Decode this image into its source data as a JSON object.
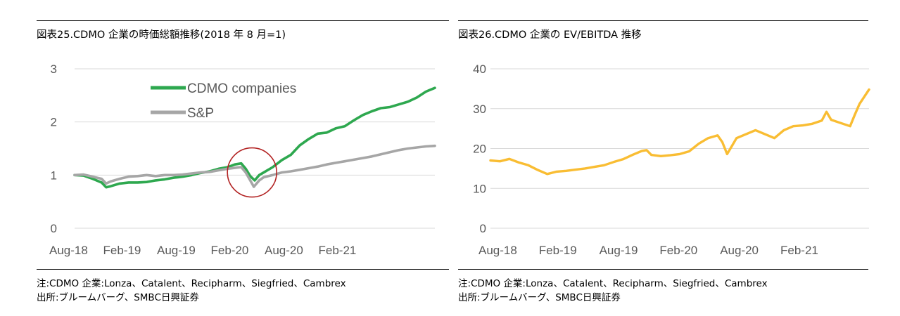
{
  "chart_data": [
    {
      "type": "line",
      "title": "図表25.CDMO 企業の時価総額推移(2018 年 8 月=1)",
      "xlabel": "",
      "ylabel": "",
      "x_tick_labels": [
        "Aug-18",
        "Feb-19",
        "Aug-19",
        "Feb-20",
        "Aug-20",
        "Feb-21"
      ],
      "y_tick_labels": [
        "0",
        "1",
        "2",
        "3"
      ],
      "ylim": [
        0,
        3
      ],
      "x_range_months": [
        0,
        40
      ],
      "grid": "horizontal",
      "legend_position": "upper-center",
      "annotation": "red circle around Feb-20 COVID drop",
      "series": [
        {
          "name": "CDMO companies",
          "color": "#2EA84F",
          "points": [
            [
              0,
              1.0
            ],
            [
              1,
              0.99
            ],
            [
              2,
              0.93
            ],
            [
              3,
              0.86
            ],
            [
              3.5,
              0.77
            ],
            [
              4,
              0.79
            ],
            [
              5,
              0.84
            ],
            [
              6,
              0.86
            ],
            [
              7,
              0.86
            ],
            [
              8,
              0.87
            ],
            [
              9,
              0.9
            ],
            [
              10,
              0.92
            ],
            [
              11,
              0.95
            ],
            [
              12,
              0.97
            ],
            [
              13,
              1.0
            ],
            [
              14,
              1.04
            ],
            [
              15,
              1.07
            ],
            [
              16,
              1.12
            ],
            [
              17,
              1.15
            ],
            [
              17.8,
              1.2
            ],
            [
              18.5,
              1.22
            ],
            [
              19,
              1.12
            ],
            [
              19.5,
              0.98
            ],
            [
              20,
              0.9
            ],
            [
              20.5,
              1.0
            ],
            [
              21,
              1.05
            ],
            [
              22,
              1.15
            ],
            [
              23,
              1.28
            ],
            [
              24,
              1.38
            ],
            [
              25,
              1.56
            ],
            [
              26,
              1.68
            ],
            [
              27,
              1.78
            ],
            [
              28,
              1.8
            ],
            [
              29,
              1.88
            ],
            [
              30,
              1.92
            ],
            [
              31,
              2.03
            ],
            [
              32,
              2.13
            ],
            [
              33,
              2.2
            ],
            [
              34,
              2.26
            ],
            [
              35,
              2.28
            ],
            [
              36,
              2.33
            ],
            [
              37,
              2.38
            ],
            [
              38,
              2.46
            ],
            [
              39,
              2.57
            ],
            [
              40,
              2.64
            ]
          ]
        },
        {
          "name": "S&P",
          "color": "#A6A6A6",
          "points": [
            [
              0,
              1.0
            ],
            [
              1,
              1.01
            ],
            [
              2,
              0.97
            ],
            [
              3,
              0.93
            ],
            [
              3.5,
              0.84
            ],
            [
              4,
              0.88
            ],
            [
              5,
              0.93
            ],
            [
              6,
              0.97
            ],
            [
              7,
              0.98
            ],
            [
              8,
              1.0
            ],
            [
              9,
              0.98
            ],
            [
              10,
              1.0
            ],
            [
              11,
              1.0
            ],
            [
              12,
              1.01
            ],
            [
              13,
              1.03
            ],
            [
              14,
              1.05
            ],
            [
              15,
              1.06
            ],
            [
              16,
              1.09
            ],
            [
              17,
              1.12
            ],
            [
              18,
              1.14
            ],
            [
              18.5,
              1.15
            ],
            [
              19,
              1.05
            ],
            [
              19.5,
              0.9
            ],
            [
              19.9,
              0.78
            ],
            [
              20.5,
              0.9
            ],
            [
              21,
              0.96
            ],
            [
              22,
              1.0
            ],
            [
              23,
              1.05
            ],
            [
              24,
              1.07
            ],
            [
              25,
              1.1
            ],
            [
              26,
              1.13
            ],
            [
              27,
              1.16
            ],
            [
              28,
              1.2
            ],
            [
              29,
              1.23
            ],
            [
              30,
              1.26
            ],
            [
              31,
              1.29
            ],
            [
              32,
              1.32
            ],
            [
              33,
              1.35
            ],
            [
              34,
              1.39
            ],
            [
              35,
              1.43
            ],
            [
              36,
              1.47
            ],
            [
              37,
              1.5
            ],
            [
              38,
              1.52
            ],
            [
              39,
              1.54
            ],
            [
              40,
              1.55
            ]
          ]
        }
      ]
    },
    {
      "type": "line",
      "title": "図表26.CDMO 企業の EV/EBITDA 推移",
      "xlabel": "",
      "ylabel": "",
      "x_tick_labels": [
        "Aug-18",
        "Feb-19",
        "Aug-19",
        "Feb-20",
        "Aug-20",
        "Feb-21"
      ],
      "y_tick_labels": [
        "0",
        "10",
        "20",
        "30",
        "40"
      ],
      "ylim": [
        0,
        40
      ],
      "x_range_months": [
        0,
        40
      ],
      "grid": "horizontal",
      "series": [
        {
          "name": "EV/EBITDA",
          "color": "#F9BD33",
          "points": [
            [
              0,
              17.0
            ],
            [
              1,
              16.8
            ],
            [
              2,
              17.4
            ],
            [
              3,
              16.5
            ],
            [
              4,
              15.8
            ],
            [
              5,
              14.6
            ],
            [
              6,
              13.6
            ],
            [
              7,
              14.2
            ],
            [
              8,
              14.4
            ],
            [
              9,
              14.7
            ],
            [
              10,
              15.0
            ],
            [
              11,
              15.4
            ],
            [
              12,
              15.8
            ],
            [
              13,
              16.6
            ],
            [
              14,
              17.3
            ],
            [
              15,
              18.4
            ],
            [
              16,
              19.4
            ],
            [
              16.5,
              19.6
            ],
            [
              17,
              18.4
            ],
            [
              18,
              18.1
            ],
            [
              19,
              18.3
            ],
            [
              20,
              18.6
            ],
            [
              21,
              19.3
            ],
            [
              22,
              21.2
            ],
            [
              23,
              22.6
            ],
            [
              24,
              23.3
            ],
            [
              24.5,
              21.6
            ],
            [
              25,
              18.6
            ],
            [
              25.5,
              20.6
            ],
            [
              26,
              22.6
            ],
            [
              27,
              23.6
            ],
            [
              28,
              24.6
            ],
            [
              29,
              23.6
            ],
            [
              30,
              22.6
            ],
            [
              31,
              24.6
            ],
            [
              32,
              25.6
            ],
            [
              33,
              25.8
            ],
            [
              34,
              26.2
            ],
            [
              35,
              27.0
            ],
            [
              35.5,
              29.2
            ],
            [
              36,
              27.2
            ],
            [
              37,
              26.4
            ],
            [
              38,
              25.6
            ],
            [
              38.5,
              28.5
            ],
            [
              39,
              31.2
            ],
            [
              40,
              34.8
            ]
          ]
        }
      ]
    }
  ],
  "footnotes": {
    "left": {
      "note": "注:CDMO 企業:Lonza、Catalent、Recipharm、Siegfried、Cambrex",
      "source": "出所:ブルームバーグ、SMBC日興証券"
    },
    "right": {
      "note": "注:CDMO 企業:Lonza、Catalent、Recipharm、Siegfried、Cambrex",
      "source": "出所:ブルームバーグ、SMBC日興証券"
    }
  }
}
